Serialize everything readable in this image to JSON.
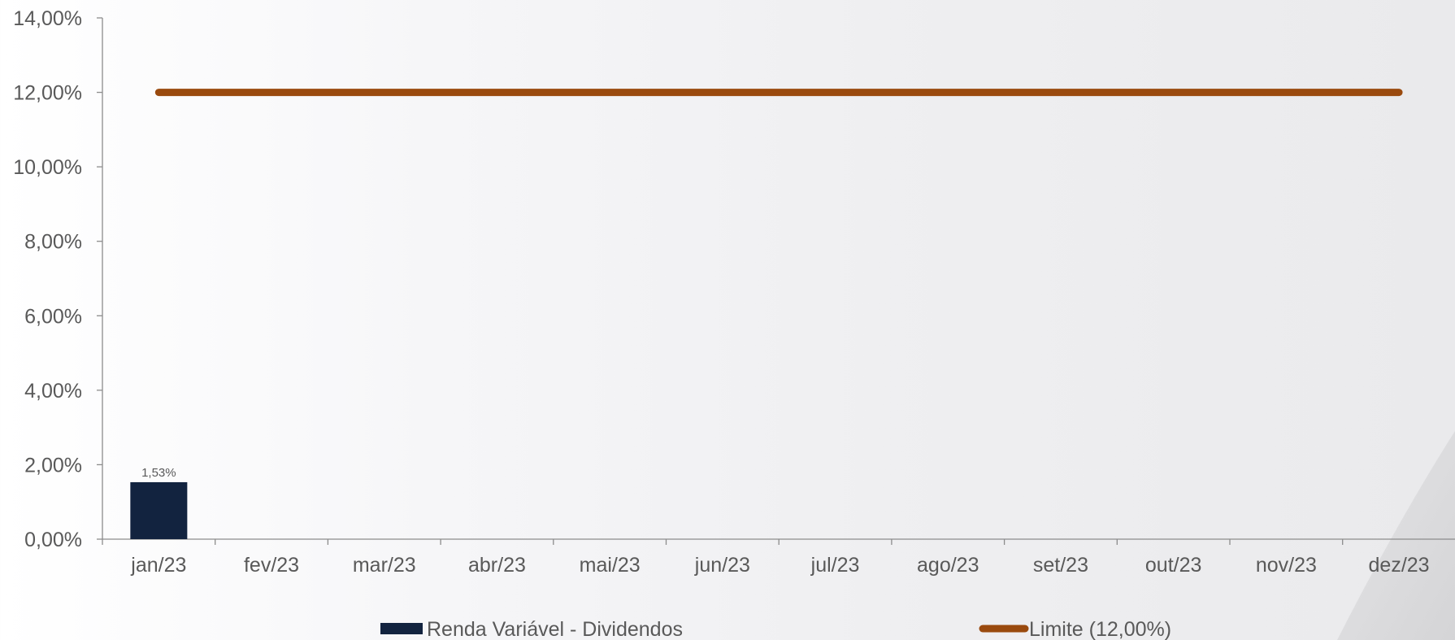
{
  "chart_data": {
    "type": "bar",
    "categories": [
      "jan/23",
      "fev/23",
      "mar/23",
      "abr/23",
      "mai/23",
      "jun/23",
      "jul/23",
      "ago/23",
      "set/23",
      "out/23",
      "nov/23",
      "dez/23"
    ],
    "series": [
      {
        "name": "Renda Variável - Dividendos",
        "type": "bar",
        "values": [
          1.53,
          null,
          null,
          null,
          null,
          null,
          null,
          null,
          null,
          null,
          null,
          null
        ],
        "data_labels": [
          "1,53%",
          "",
          "",
          "",
          "",
          "",
          "",
          "",
          "",
          "",
          "",
          ""
        ]
      },
      {
        "name": "Limite (12,00%)",
        "type": "line",
        "values": [
          12,
          12,
          12,
          12,
          12,
          12,
          12,
          12,
          12,
          12,
          12,
          12
        ]
      }
    ],
    "ylim": [
      0,
      14
    ],
    "yticks": [
      0,
      2,
      4,
      6,
      8,
      10,
      12,
      14
    ],
    "ytick_labels": [
      "0,00%",
      "2,00%",
      "4,00%",
      "6,00%",
      "8,00%",
      "10,00%",
      "12,00%",
      "14,00%"
    ],
    "title": "",
    "xlabel": "",
    "ylabel": "",
    "grid": false,
    "legend": "bottom",
    "colors": {
      "bar": "#12233f",
      "line": "#9a4a0e",
      "axis": "#8c8c8c",
      "text": "#595959"
    }
  }
}
